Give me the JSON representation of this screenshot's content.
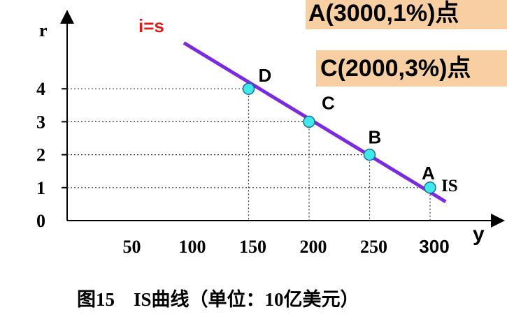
{
  "callouts": {
    "top": "A(3000,1%)点",
    "middle": "C(2000,3%)点"
  },
  "caption": "图15　IS曲线（单位：10亿美元）",
  "chart_data": {
    "type": "line",
    "title": "",
    "xlabel": "y",
    "ylabel": "r",
    "x_ticks": [
      "50",
      "100",
      "150",
      "200",
      "250",
      "300"
    ],
    "y_ticks": [
      "0",
      "1",
      "2",
      "3",
      "4"
    ],
    "curve_labels": {
      "is_label": "IS",
      "equality_label": "i=s"
    },
    "series": [
      {
        "name": "IS",
        "color": "#7a2be0",
        "points": [
          {
            "label": "D",
            "x": 150,
            "y": 4
          },
          {
            "label": "C",
            "x": 200,
            "y": 3
          },
          {
            "label": "B",
            "x": 250,
            "y": 2
          },
          {
            "label": "A",
            "x": 300,
            "y": 1
          }
        ],
        "line_extent": {
          "x": [
            100,
            310
          ],
          "y": [
            5.5,
            0.7
          ]
        }
      }
    ],
    "colors": {
      "line": "#7a2be0",
      "marker_fill": "#40e8e8",
      "marker_stroke": "#1a6fa0",
      "equality_label": "#e01818"
    },
    "xlim": [
      0,
      330
    ],
    "ylim": [
      0,
      6
    ],
    "grid": false,
    "guide_lines": "dotted"
  }
}
